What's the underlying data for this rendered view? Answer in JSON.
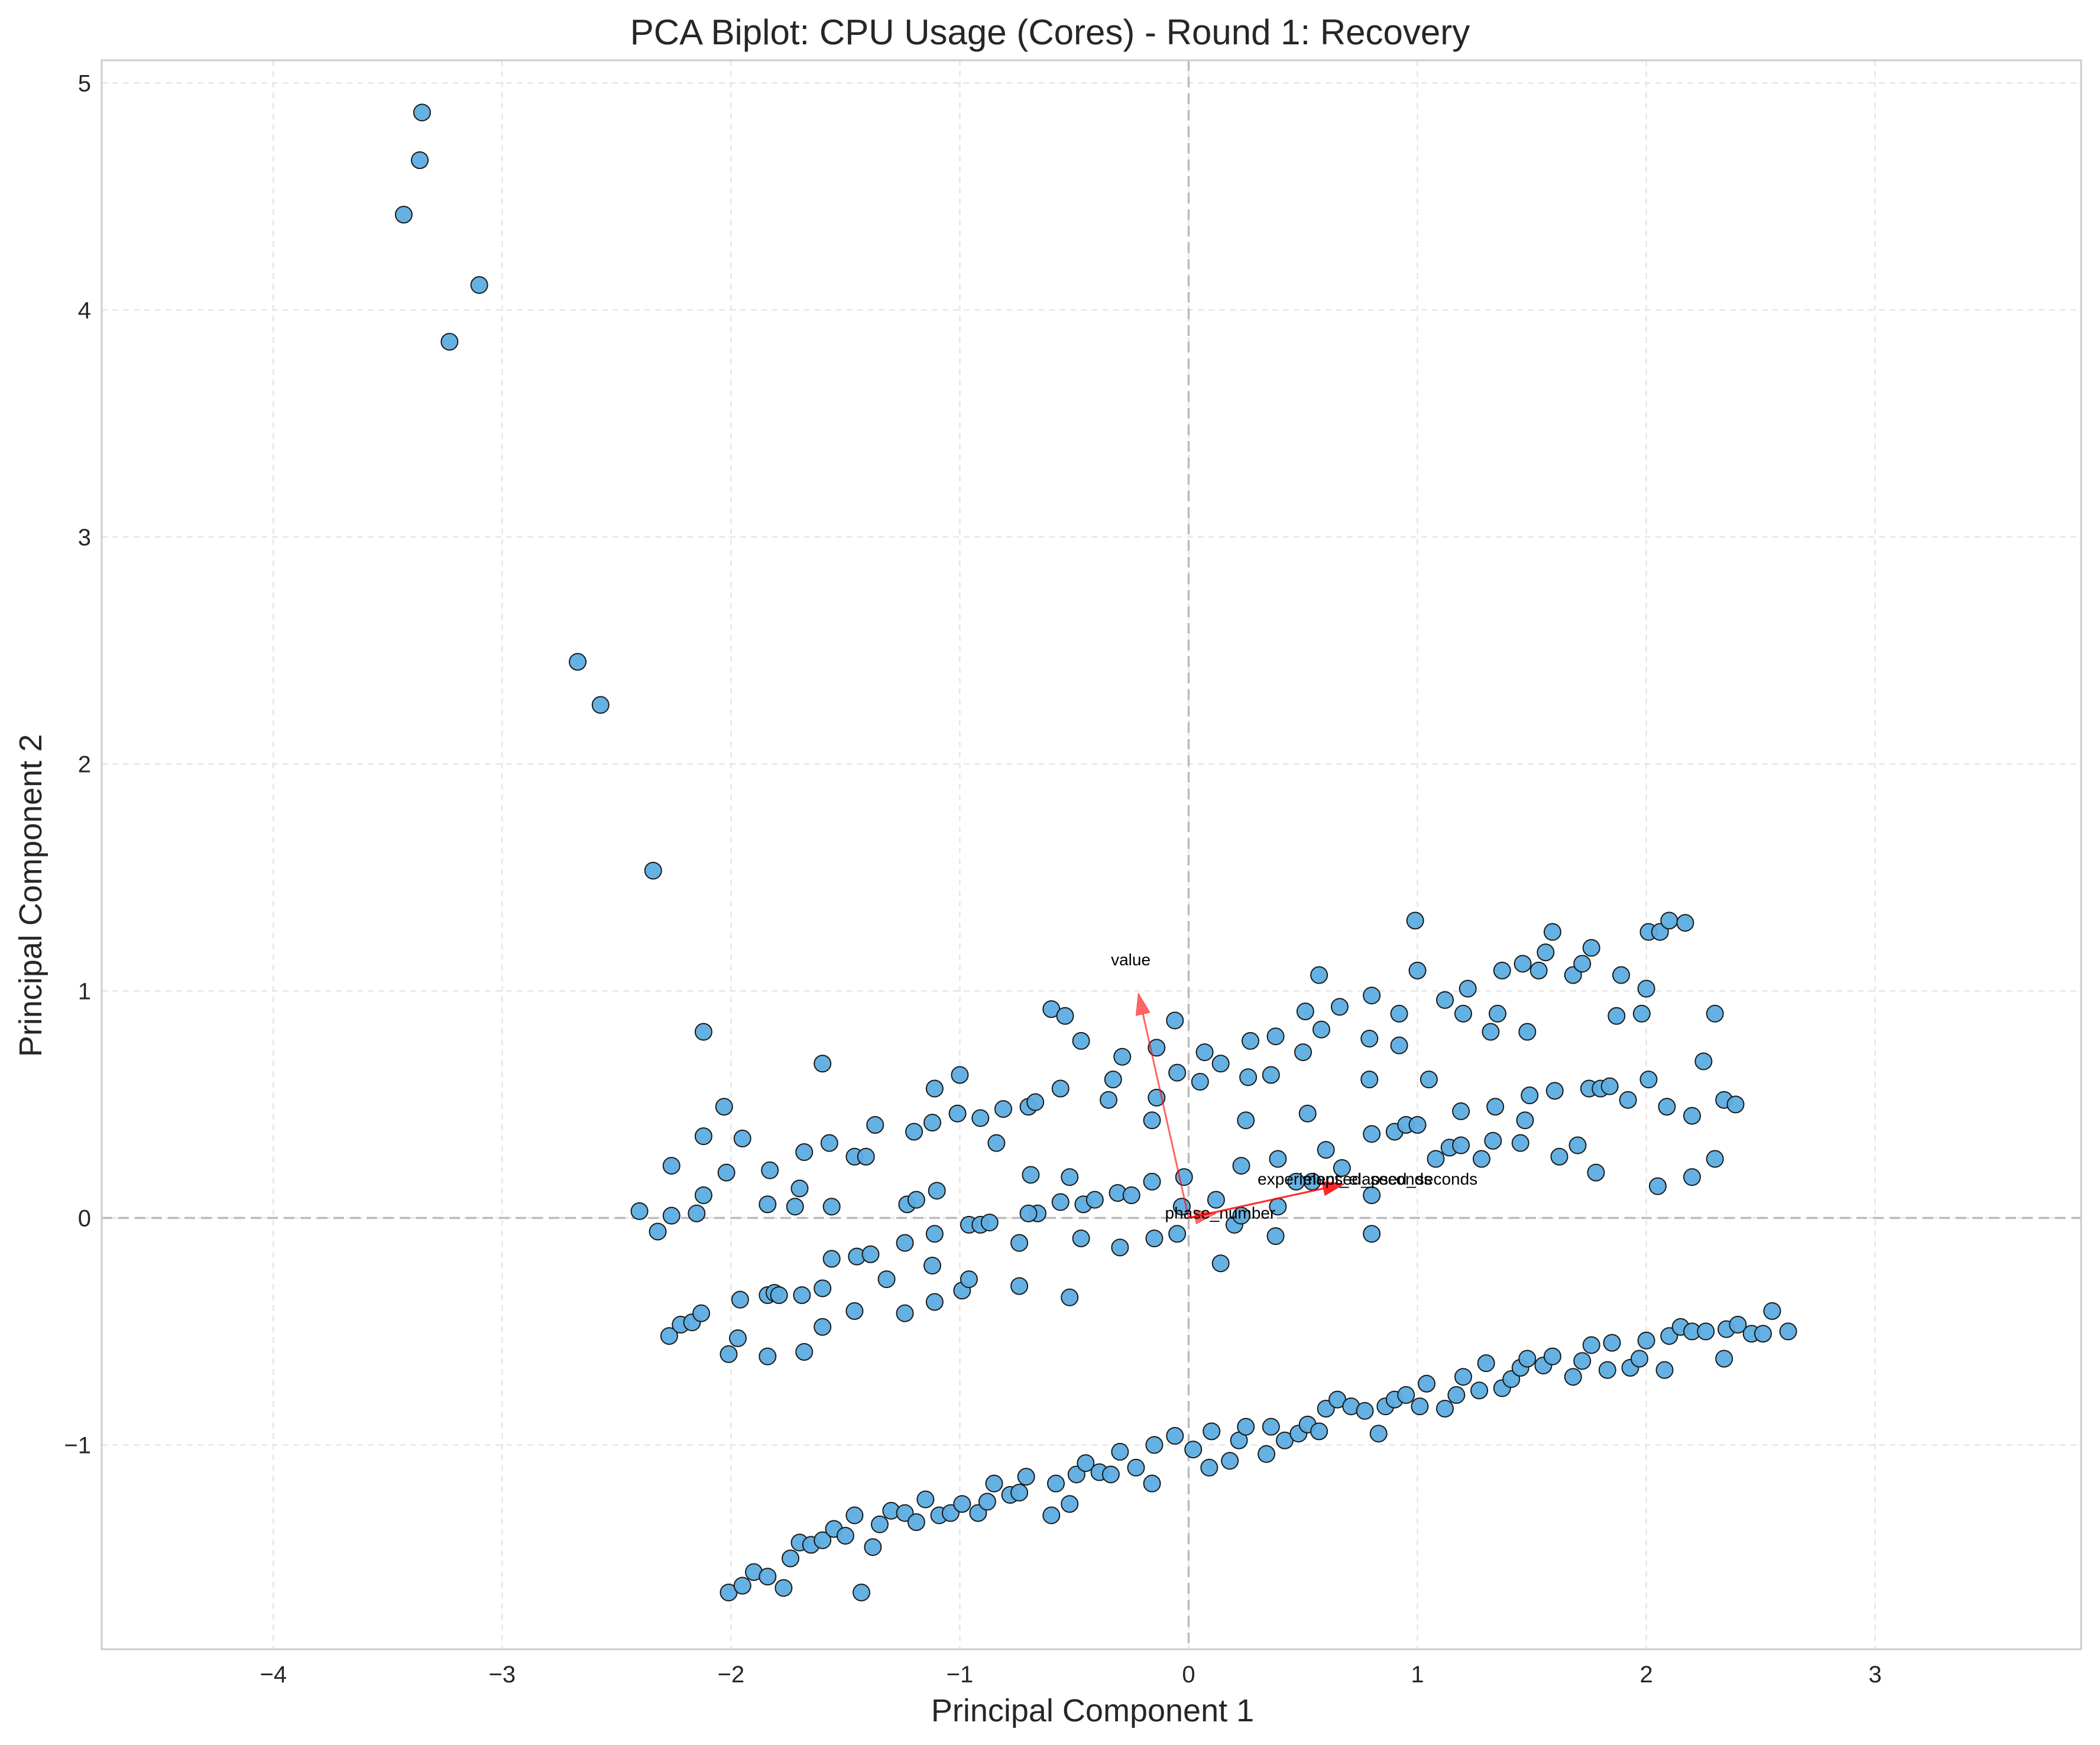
{
  "chart_data": {
    "type": "scatter",
    "title": "PCA Biplot: CPU Usage (Cores) - Round 1: Recovery",
    "xlabel": "Principal Component 1",
    "ylabel": "Principal Component 2",
    "xlim": [
      -4.75,
      3.9
    ],
    "ylim": [
      -1.9,
      5.1
    ],
    "xticks": [
      -4,
      -3,
      -2,
      -1,
      0,
      1,
      2,
      3
    ],
    "yticks": [
      -1,
      0,
      1,
      2,
      3,
      4,
      5
    ],
    "xtick_labels": [
      "−4",
      "−3",
      "−2",
      "−1",
      "0",
      "1",
      "2",
      "3"
    ],
    "ytick_labels": [
      "−1",
      "0",
      "1",
      "2",
      "3",
      "4",
      "5"
    ],
    "grid": true,
    "colors": {
      "point_fill": "#5dade2",
      "point_edge": "#1a1a1a",
      "arrow": "#ff0000",
      "zero_line": "#bbbbbb",
      "grid": "#e6e6e6"
    },
    "points": [
      [
        -3.35,
        4.87
      ],
      [
        -3.36,
        4.66
      ],
      [
        -3.43,
        4.42
      ],
      [
        -3.1,
        4.11
      ],
      [
        -3.23,
        3.86
      ],
      [
        -2.67,
        2.45
      ],
      [
        -2.57,
        2.26
      ],
      [
        -2.34,
        1.53
      ],
      [
        -2.12,
        0.82
      ],
      [
        -1.6,
        0.68
      ],
      [
        -2.03,
        0.49
      ],
      [
        -2.12,
        0.36
      ],
      [
        -1.95,
        0.35
      ],
      [
        -2.26,
        0.23
      ],
      [
        -2.02,
        0.2
      ],
      [
        -2.12,
        0.1
      ],
      [
        -1.83,
        0.21
      ],
      [
        -1.68,
        0.29
      ],
      [
        -1.57,
        0.33
      ],
      [
        -1.7,
        0.13
      ],
      [
        -1.84,
        0.06
      ],
      [
        -1.72,
        0.05
      ],
      [
        -1.56,
        0.05
      ],
      [
        -2.4,
        0.03
      ],
      [
        -2.32,
        -0.06
      ],
      [
        -2.26,
        0.01
      ],
      [
        -2.15,
        0.02
      ],
      [
        -1.37,
        0.41
      ],
      [
        -1.46,
        0.27
      ],
      [
        -1.41,
        0.27
      ],
      [
        -1.2,
        0.38
      ],
      [
        -1.12,
        0.42
      ],
      [
        -1.11,
        0.57
      ],
      [
        -1.0,
        0.63
      ],
      [
        -1.01,
        0.46
      ],
      [
        -0.91,
        0.44
      ],
      [
        -0.81,
        0.48
      ],
      [
        -0.84,
        0.33
      ],
      [
        -1.23,
        0.06
      ],
      [
        -1.19,
        0.08
      ],
      [
        -1.1,
        0.12
      ],
      [
        -1.11,
        -0.07
      ],
      [
        -0.96,
        -0.03
      ],
      [
        -0.91,
        -0.03
      ],
      [
        -0.87,
        -0.02
      ],
      [
        -0.74,
        -0.11
      ],
      [
        -0.6,
        0.92
      ],
      [
        -0.54,
        0.89
      ],
      [
        -0.47,
        0.78
      ],
      [
        -0.56,
        0.57
      ],
      [
        -0.7,
        0.49
      ],
      [
        -0.67,
        0.51
      ],
      [
        -0.69,
        0.19
      ],
      [
        -0.52,
        0.18
      ],
      [
        -0.56,
        0.07
      ],
      [
        -0.66,
        0.02
      ],
      [
        -0.7,
        0.02
      ],
      [
        -0.46,
        0.06
      ],
      [
        -0.41,
        0.08
      ],
      [
        -0.31,
        0.11
      ],
      [
        -0.25,
        0.1
      ],
      [
        -0.16,
        0.16
      ],
      [
        -0.47,
        -0.09
      ],
      [
        -0.3,
        -0.13
      ],
      [
        -0.15,
        -0.09
      ],
      [
        -0.05,
        -0.07
      ],
      [
        -0.52,
        -0.35
      ],
      [
        -0.74,
        -0.3
      ],
      [
        -0.29,
        0.71
      ],
      [
        -0.33,
        0.61
      ],
      [
        -0.35,
        0.52
      ],
      [
        -0.16,
        0.43
      ],
      [
        -0.14,
        0.53
      ],
      [
        -0.14,
        0.75
      ],
      [
        -0.06,
        0.87
      ],
      [
        -0.05,
        0.64
      ],
      [
        -0.02,
        0.18
      ],
      [
        -0.03,
        0.05
      ],
      [
        0.07,
        0.73
      ],
      [
        0.14,
        0.68
      ],
      [
        0.05,
        0.6
      ],
      [
        0.27,
        0.78
      ],
      [
        0.26,
        0.62
      ],
      [
        0.36,
        0.63
      ],
      [
        0.38,
        0.8
      ],
      [
        0.25,
        0.43
      ],
      [
        0.23,
        0.23
      ],
      [
        0.39,
        0.26
      ],
      [
        0.12,
        0.08
      ],
      [
        0.2,
        -0.03
      ],
      [
        0.23,
        0.01
      ],
      [
        0.14,
        -0.2
      ],
      [
        0.38,
        -0.08
      ],
      [
        0.39,
        0.05
      ],
      [
        0.51,
        0.91
      ],
      [
        0.57,
        1.07
      ],
      [
        0.66,
        0.93
      ],
      [
        0.58,
        0.83
      ],
      [
        0.5,
        0.73
      ],
      [
        0.52,
        0.46
      ],
      [
        0.6,
        0.3
      ],
      [
        0.67,
        0.22
      ],
      [
        0.54,
        0.16
      ],
      [
        0.47,
        0.16
      ],
      [
        0.8,
        0.98
      ],
      [
        0.79,
        0.79
      ],
      [
        0.79,
        0.61
      ],
      [
        0.8,
        0.37
      ],
      [
        0.8,
        0.1
      ],
      [
        0.8,
        -0.07
      ],
      [
        0.92,
        0.9
      ],
      [
        0.92,
        0.76
      ],
      [
        0.9,
        0.38
      ],
      [
        0.95,
        0.41
      ],
      [
        1.0,
        0.41
      ],
      [
        0.99,
        1.31
      ],
      [
        1.0,
        1.09
      ],
      [
        1.12,
        0.96
      ],
      [
        1.22,
        1.01
      ],
      [
        1.2,
        0.9
      ],
      [
        1.05,
        0.61
      ],
      [
        1.19,
        0.47
      ],
      [
        1.14,
        0.31
      ],
      [
        1.19,
        0.32
      ],
      [
        1.08,
        0.26
      ],
      [
        1.28,
        0.26
      ],
      [
        1.37,
        1.09
      ],
      [
        1.46,
        1.12
      ],
      [
        1.35,
        0.9
      ],
      [
        1.32,
        0.82
      ],
      [
        1.34,
        0.49
      ],
      [
        1.33,
        0.34
      ],
      [
        1.45,
        0.33
      ],
      [
        1.47,
        0.43
      ],
      [
        1.49,
        0.54
      ],
      [
        1.48,
        0.82
      ],
      [
        1.53,
        1.09
      ],
      [
        1.56,
        1.17
      ],
      [
        1.59,
        1.26
      ],
      [
        1.68,
        1.07
      ],
      [
        1.72,
        1.12
      ],
      [
        1.76,
        1.19
      ],
      [
        1.87,
        0.89
      ],
      [
        1.89,
        1.07
      ],
      [
        1.98,
        0.9
      ],
      [
        2.0,
        1.01
      ],
      [
        1.6,
        0.56
      ],
      [
        1.75,
        0.57
      ],
      [
        1.8,
        0.57
      ],
      [
        1.84,
        0.58
      ],
      [
        1.92,
        0.52
      ],
      [
        2.01,
        0.61
      ],
      [
        1.62,
        0.27
      ],
      [
        1.7,
        0.32
      ],
      [
        1.78,
        0.2
      ],
      [
        2.01,
        1.26
      ],
      [
        2.06,
        1.26
      ],
      [
        2.1,
        1.31
      ],
      [
        2.17,
        1.3
      ],
      [
        2.25,
        0.69
      ],
      [
        2.3,
        0.9
      ],
      [
        2.09,
        0.49
      ],
      [
        2.2,
        0.45
      ],
      [
        2.34,
        0.52
      ],
      [
        2.39,
        0.5
      ],
      [
        2.05,
        0.14
      ],
      [
        2.2,
        0.18
      ],
      [
        2.3,
        0.26
      ],
      [
        -2.27,
        -0.52
      ],
      [
        -2.22,
        -0.47
      ],
      [
        -2.17,
        -0.46
      ],
      [
        -2.13,
        -0.42
      ],
      [
        -2.01,
        -0.6
      ],
      [
        -1.97,
        -0.53
      ],
      [
        -1.96,
        -0.36
      ],
      [
        -1.84,
        -0.34
      ],
      [
        -1.81,
        -0.33
      ],
      [
        -1.79,
        -0.34
      ],
      [
        -1.69,
        -0.34
      ],
      [
        -1.84,
        -0.61
      ],
      [
        -1.68,
        -0.59
      ],
      [
        -1.6,
        -0.48
      ],
      [
        -1.6,
        -0.31
      ],
      [
        -1.56,
        -0.18
      ],
      [
        -1.46,
        -0.41
      ],
      [
        -1.45,
        -0.17
      ],
      [
        -1.39,
        -0.16
      ],
      [
        -1.32,
        -0.27
      ],
      [
        -1.24,
        -0.42
      ],
      [
        -1.11,
        -0.37
      ],
      [
        -1.12,
        -0.21
      ],
      [
        -1.24,
        -0.11
      ],
      [
        -0.99,
        -0.32
      ],
      [
        -0.96,
        -0.27
      ],
      [
        -2.01,
        -1.65
      ],
      [
        -1.95,
        -1.62
      ],
      [
        -1.9,
        -1.56
      ],
      [
        -1.84,
        -1.58
      ],
      [
        -1.77,
        -1.63
      ],
      [
        -1.74,
        -1.5
      ],
      [
        -1.7,
        -1.43
      ],
      [
        -1.65,
        -1.44
      ],
      [
        -1.6,
        -1.42
      ],
      [
        -1.55,
        -1.37
      ],
      [
        -1.5,
        -1.4
      ],
      [
        -1.46,
        -1.31
      ],
      [
        -1.43,
        -1.65
      ],
      [
        -1.38,
        -1.45
      ],
      [
        -1.35,
        -1.35
      ],
      [
        -1.3,
        -1.29
      ],
      [
        -1.24,
        -1.3
      ],
      [
        -1.19,
        -1.34
      ],
      [
        -1.15,
        -1.24
      ],
      [
        -1.09,
        -1.31
      ],
      [
        -1.04,
        -1.3
      ],
      [
        -0.99,
        -1.26
      ],
      [
        -0.92,
        -1.3
      ],
      [
        -0.88,
        -1.25
      ],
      [
        -0.85,
        -1.17
      ],
      [
        -0.78,
        -1.22
      ],
      [
        -0.74,
        -1.21
      ],
      [
        -0.71,
        -1.14
      ],
      [
        -0.6,
        -1.31
      ],
      [
        -0.58,
        -1.17
      ],
      [
        -0.52,
        -1.26
      ],
      [
        -0.49,
        -1.13
      ],
      [
        -0.45,
        -1.08
      ],
      [
        -0.39,
        -1.12
      ],
      [
        -0.34,
        -1.13
      ],
      [
        -0.3,
        -1.03
      ],
      [
        -0.23,
        -1.1
      ],
      [
        -0.16,
        -1.17
      ],
      [
        -0.15,
        -1.0
      ],
      [
        -0.06,
        -0.96
      ],
      [
        0.02,
        -1.02
      ],
      [
        0.09,
        -1.1
      ],
      [
        0.1,
        -0.94
      ],
      [
        0.18,
        -1.07
      ],
      [
        0.22,
        -0.98
      ],
      [
        0.25,
        -0.92
      ],
      [
        0.34,
        -1.04
      ],
      [
        0.36,
        -0.92
      ],
      [
        0.42,
        -0.98
      ],
      [
        0.48,
        -0.95
      ],
      [
        0.52,
        -0.91
      ],
      [
        0.57,
        -0.94
      ],
      [
        0.6,
        -0.84
      ],
      [
        0.65,
        -0.8
      ],
      [
        0.71,
        -0.83
      ],
      [
        0.77,
        -0.85
      ],
      [
        0.83,
        -0.95
      ],
      [
        0.86,
        -0.83
      ],
      [
        0.9,
        -0.8
      ],
      [
        0.95,
        -0.78
      ],
      [
        1.01,
        -0.83
      ],
      [
        1.04,
        -0.73
      ],
      [
        1.12,
        -0.84
      ],
      [
        1.17,
        -0.78
      ],
      [
        1.2,
        -0.7
      ],
      [
        1.27,
        -0.76
      ],
      [
        1.3,
        -0.64
      ],
      [
        1.37,
        -0.75
      ],
      [
        1.41,
        -0.71
      ],
      [
        1.45,
        -0.66
      ],
      [
        1.48,
        -0.62
      ],
      [
        1.55,
        -0.65
      ],
      [
        1.59,
        -0.61
      ],
      [
        1.68,
        -0.7
      ],
      [
        1.72,
        -0.63
      ],
      [
        1.76,
        -0.56
      ],
      [
        1.83,
        -0.67
      ],
      [
        1.85,
        -0.55
      ],
      [
        1.93,
        -0.66
      ],
      [
        1.97,
        -0.62
      ],
      [
        2.0,
        -0.54
      ],
      [
        2.08,
        -0.67
      ],
      [
        2.1,
        -0.52
      ],
      [
        2.15,
        -0.48
      ],
      [
        2.2,
        -0.5
      ],
      [
        2.26,
        -0.5
      ],
      [
        2.34,
        -0.62
      ],
      [
        2.35,
        -0.49
      ],
      [
        2.4,
        -0.47
      ],
      [
        2.46,
        -0.51
      ],
      [
        2.51,
        -0.51
      ],
      [
        2.55,
        -0.41
      ],
      [
        2.62,
        -0.5
      ]
    ],
    "loadings": [
      {
        "name": "value",
        "dx": -0.22,
        "dy": 0.99,
        "label": "value"
      },
      {
        "name": "phase_number",
        "dx": 0.12,
        "dy": 0.02,
        "label": "phase_number"
      },
      {
        "name": "experiment_elapsed_seconds",
        "dx": 0.68,
        "dy": 0.15,
        "label": "experiment_elapsed_seconds"
      },
      {
        "name": "elapsed_seconds",
        "dx": 0.68,
        "dy": 0.15,
        "label": "elapsed_seconds"
      }
    ]
  }
}
